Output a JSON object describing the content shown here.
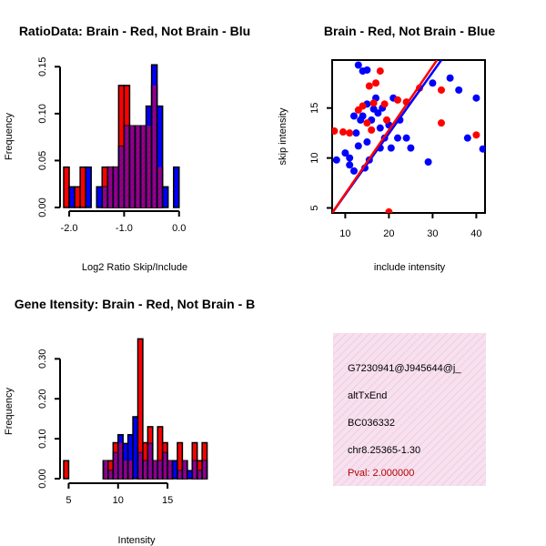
{
  "colors": {
    "red": "#ff0000",
    "blue": "#0000ff",
    "purple": "#8b008b",
    "panel": "#f4d8ea",
    "pval": "#b00000"
  },
  "chart_data": [
    {
      "type": "bar",
      "title": "RatioData: Brain - Red, Not Brain - Blu",
      "xlabel": "Log2 Ratio Skip/Include",
      "ylabel": "Frequency",
      "xlim": [
        -2.1,
        0.6
      ],
      "ylim": [
        0,
        0.16
      ],
      "xticks": [
        -2.0,
        -1.0,
        0.0
      ],
      "xtick_labels": [
        "-2.0",
        "-1.0",
        "0.0"
      ],
      "yticks": [
        0.0,
        0.05,
        0.1,
        0.15
      ],
      "ytick_labels": [
        "0.00",
        "0.05",
        "0.10",
        "0.15"
      ],
      "bin_start": -2.1,
      "bin_width": 0.1,
      "series": [
        {
          "name": "Brain",
          "color": "red",
          "values": [
            0.043,
            0.0,
            0.022,
            0.043,
            0.0,
            0.0,
            0.0,
            0.043,
            0.043,
            0.043,
            0.13,
            0.13,
            0.087,
            0.087,
            0.087,
            0.087,
            0.13,
            0.043,
            0.0,
            0.0
          ]
        },
        {
          "name": "Not Brain",
          "color": "blue",
          "values": [
            0.0,
            0.022,
            0.0,
            0.0,
            0.043,
            0.0,
            0.022,
            0.022,
            0.043,
            0.043,
            0.065,
            0.087,
            0.087,
            0.087,
            0.087,
            0.108,
            0.152,
            0.108,
            0.022,
            0.0,
            0.043
          ]
        }
      ]
    },
    {
      "type": "scatter",
      "title": "Brain - Red, Not Brain - Blue",
      "xlabel": "include intensity",
      "ylabel": "skip intensity",
      "xlim": [
        7,
        42
      ],
      "ylim": [
        4.5,
        19.8
      ],
      "xticks": [
        10,
        20,
        30,
        40
      ],
      "yticks": [
        5,
        10,
        15
      ],
      "series": [
        {
          "name": "Brain",
          "color": "red",
          "points": [
            [
              7.5,
              12.7
            ],
            [
              9.5,
              12.6
            ],
            [
              11,
              12.5
            ],
            [
              13,
              14.8
            ],
            [
              14,
              15.2
            ],
            [
              15,
              13.5
            ],
            [
              15.5,
              17.2
            ],
            [
              16,
              12.8
            ],
            [
              16.5,
              15.5
            ],
            [
              17,
              17.5
            ],
            [
              18,
              18.7
            ],
            [
              19,
              15.4
            ],
            [
              19.5,
              13.8
            ],
            [
              20,
              4.6
            ],
            [
              22,
              15.8
            ],
            [
              24,
              15.6
            ],
            [
              27,
              17.0
            ],
            [
              32,
              16.8
            ],
            [
              32,
              13.5
            ],
            [
              40,
              12.3
            ]
          ],
          "fit": [
            [
              7,
              4.5
            ],
            [
              31,
              19.8
            ]
          ]
        },
        {
          "name": "Not Brain",
          "color": "blue",
          "points": [
            [
              8,
              9.8
            ],
            [
              10,
              10.5
            ],
            [
              11,
              10.0
            ],
            [
              11,
              9.3
            ],
            [
              12,
              14.2
            ],
            [
              12,
              8.7
            ],
            [
              12.5,
              12.5
            ],
            [
              13,
              19.3
            ],
            [
              13,
              11.2
            ],
            [
              13.5,
              13.8
            ],
            [
              14,
              18.7
            ],
            [
              14,
              14.2
            ],
            [
              14.5,
              9.0
            ],
            [
              15,
              18.8
            ],
            [
              15,
              15.4
            ],
            [
              15,
              11.6
            ],
            [
              15.5,
              9.8
            ],
            [
              16,
              13.8
            ],
            [
              16.5,
              14.9
            ],
            [
              17,
              16.0
            ],
            [
              17.5,
              14.5
            ],
            [
              18,
              13.0
            ],
            [
              18,
              11.0
            ],
            [
              18.5,
              15.0
            ],
            [
              19,
              12.0
            ],
            [
              20,
              13.3
            ],
            [
              20.5,
              11.0
            ],
            [
              21,
              16.0
            ],
            [
              22,
              12.0
            ],
            [
              22.5,
              13.8
            ],
            [
              24,
              12.0
            ],
            [
              25,
              11.0
            ],
            [
              29,
              9.6
            ],
            [
              30,
              17.5
            ],
            [
              34,
              18.0
            ],
            [
              36,
              16.8
            ],
            [
              38,
              12.0
            ],
            [
              40,
              16.0
            ],
            [
              41.5,
              10.9
            ]
          ],
          "fit": [
            [
              7,
              4.5
            ],
            [
              32,
              19.8
            ]
          ]
        }
      ]
    },
    {
      "type": "bar",
      "title": "Gene Itensity: Brain - Red, Not Brain - B",
      "xlabel": "Intensity",
      "ylabel": "Frequency",
      "xlim": [
        4.5,
        19.5
      ],
      "ylim": [
        0,
        0.36
      ],
      "xticks": [
        5,
        10,
        15
      ],
      "xtick_labels": [
        "5",
        "10",
        "15"
      ],
      "yticks": [
        0.0,
        0.1,
        0.2,
        0.3
      ],
      "ytick_labels": [
        "0.00",
        "0.10",
        "0.20",
        "0.30"
      ],
      "bin_start": 4.5,
      "bin_width": 0.5,
      "series": [
        {
          "name": "Brain",
          "color": "red",
          "values": [
            0.045,
            0.0,
            0.0,
            0.0,
            0.0,
            0.0,
            0.0,
            0.0,
            0.045,
            0.045,
            0.09,
            0.09,
            0.045,
            0.045,
            0.0,
            0.35,
            0.09,
            0.13,
            0.045,
            0.13,
            0.09,
            0.045,
            0.0,
            0.09,
            0.045,
            0.0,
            0.09,
            0.045,
            0.09
          ]
        },
        {
          "name": "Not Brain",
          "color": "blue",
          "values": [
            0.0,
            0.0,
            0.0,
            0.0,
            0.0,
            0.0,
            0.0,
            0.0,
            0.045,
            0.02,
            0.065,
            0.11,
            0.088,
            0.11,
            0.155,
            0.065,
            0.045,
            0.088,
            0.045,
            0.045,
            0.065,
            0.045,
            0.045,
            0.02,
            0.045,
            0.02,
            0.045,
            0.02,
            0.045
          ]
        }
      ]
    }
  ],
  "info_panel": {
    "id": "G7230941@J945644@j_",
    "event": "altTxEnd",
    "accession": "BC036332",
    "location": "chr8.25365-1.30",
    "pval": "Pval: 2.000000"
  }
}
